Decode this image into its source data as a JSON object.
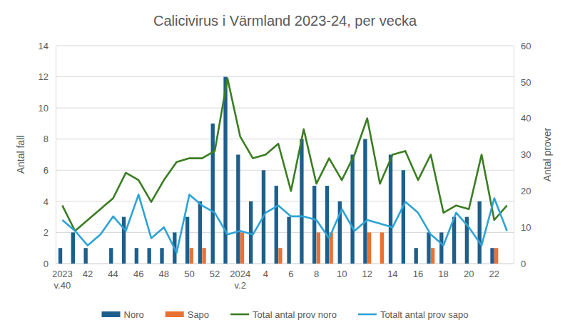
{
  "chart_data": {
    "type": "bar",
    "title": "Calicivirus i Värmland 2023-24, per vecka",
    "y_label": "Antal fall",
    "y2_label": "Antal prover",
    "categories": [
      "2023 v.40",
      null,
      "42",
      null,
      "44",
      null,
      "46",
      null,
      "48",
      null,
      "50",
      null,
      "52",
      null,
      "2024 v.2",
      null,
      "4",
      null,
      "6",
      null,
      "8",
      null,
      "10",
      null,
      "12",
      null,
      "14",
      null,
      "16",
      null,
      "18",
      null,
      "20",
      null,
      "22",
      null
    ],
    "series": [
      {
        "name": "Noro",
        "type": "bar",
        "color": "#1d5f8c",
        "values": [
          1,
          2,
          1,
          0,
          1,
          3,
          1,
          1,
          1,
          2,
          3,
          4,
          9,
          12,
          7,
          4,
          6,
          5,
          3,
          8,
          5,
          5,
          4,
          7,
          8,
          0,
          7,
          6,
          1,
          2,
          2,
          3,
          3,
          4,
          1,
          0
        ]
      },
      {
        "name": "Sapo",
        "type": "bar",
        "color": "#e97132",
        "values": [
          0,
          0,
          0,
          0,
          0,
          0,
          0,
          0,
          0,
          0,
          1,
          1,
          0,
          0,
          2,
          0,
          0,
          1,
          0,
          0,
          2,
          2,
          0,
          0,
          2,
          2,
          0,
          0,
          0,
          1,
          0,
          0,
          0,
          0,
          1,
          0
        ]
      },
      {
        "name": "Total antal prov noro",
        "type": "line",
        "axis": "y2",
        "color": "#3a7d22",
        "values": [
          16,
          9,
          12,
          15,
          18,
          25,
          23,
          17,
          23,
          28,
          29,
          29,
          31,
          51,
          35,
          29,
          30,
          33,
          20,
          37,
          22,
          29,
          23,
          30,
          40,
          22,
          30,
          31,
          23,
          30,
          14,
          16,
          15,
          30,
          12,
          16
        ]
      },
      {
        "name": "Totalt antal prov sapo",
        "type": "line",
        "axis": "y2",
        "color": "#2ea3d6",
        "values": [
          12,
          9,
          5,
          8,
          13,
          9,
          19,
          7,
          10,
          3,
          19,
          16,
          14,
          8,
          9,
          8,
          14,
          16,
          13,
          13,
          12,
          7,
          15,
          9,
          12,
          11,
          10,
          17,
          14,
          8,
          5,
          14,
          10,
          5,
          18,
          9
        ]
      }
    ],
    "ylim": [
      0,
      14
    ],
    "yticks": [
      0,
      2,
      4,
      6,
      8,
      10,
      12,
      14
    ],
    "y2lim": [
      0,
      60
    ],
    "y2ticks": [
      0,
      10,
      20,
      30,
      40,
      50,
      60
    ],
    "grid": true,
    "legend": "bottom"
  }
}
